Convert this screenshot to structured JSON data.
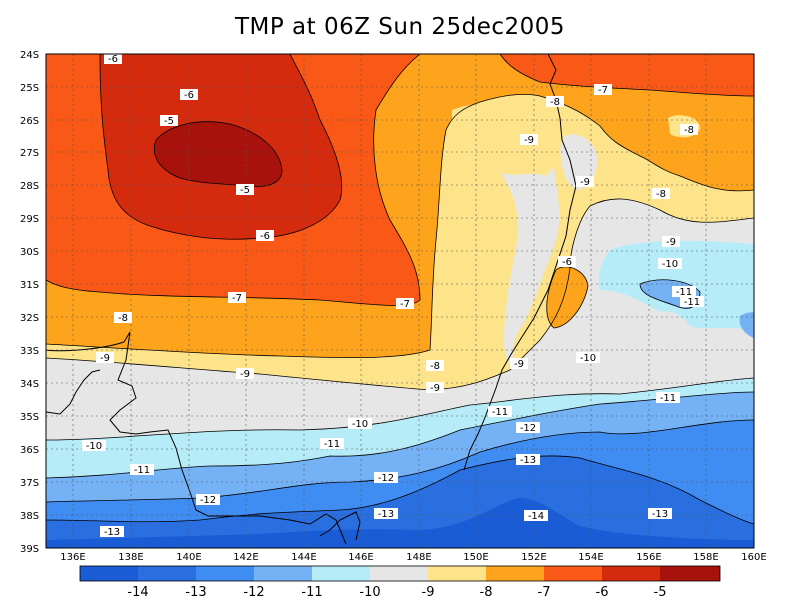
{
  "title": "TMP at 06Z Sun 25dec2005",
  "y_labels": [
    "24S",
    "25S",
    "26S",
    "27S",
    "28S",
    "29S",
    "30S",
    "31S",
    "32S",
    "33S",
    "34S",
    "35S",
    "36S",
    "37S",
    "38S",
    "39S"
  ],
  "x_labels": [
    "136E",
    "138E",
    "140E",
    "142E",
    "144E",
    "146E",
    "148E",
    "150E",
    "152E",
    "154E",
    "156E",
    "158E",
    "160E"
  ],
  "colors": {
    "lt_m14": "#1a5cd6",
    "m14_m13": "#2a6fe0",
    "m13_m12": "#3f8cf2",
    "m12_m11": "#75b2f5",
    "m11_m10": "#b5ecf7",
    "m10_m9": "#e6e6e6",
    "m9_m8": "#fde38a",
    "m8_m7": "#fea41c",
    "m7_m6": "#fa5816",
    "m6_m5": "#d42a0e",
    "gt_m5": "#a8120c"
  },
  "colorbar_labels": [
    "-14",
    "-13",
    "-12",
    "-11",
    "-10",
    "-9",
    "-8",
    "-7",
    "-6",
    "-5"
  ],
  "contour_labels": [
    {
      "text": "-6"
    },
    {
      "text": "-6"
    },
    {
      "text": "-5"
    },
    {
      "text": "-5"
    },
    {
      "text": "-6"
    },
    {
      "text": "-7"
    },
    {
      "text": "-7"
    },
    {
      "text": "-8"
    },
    {
      "text": "-9"
    },
    {
      "text": "-9"
    },
    {
      "text": "-8"
    },
    {
      "text": "-9"
    },
    {
      "text": "-10"
    },
    {
      "text": "-10"
    },
    {
      "text": "-11"
    },
    {
      "text": "-11"
    },
    {
      "text": "-12"
    },
    {
      "text": "-13"
    },
    {
      "text": "-7"
    },
    {
      "text": "-8"
    },
    {
      "text": "-9"
    },
    {
      "text": "-9"
    },
    {
      "text": "-8"
    },
    {
      "text": "-8"
    },
    {
      "text": "-9"
    },
    {
      "text": "-10"
    },
    {
      "text": "-11"
    },
    {
      "text": "-11"
    },
    {
      "text": "-6"
    },
    {
      "text": "-9"
    },
    {
      "text": "-10"
    },
    {
      "text": "-11"
    },
    {
      "text": "-11"
    },
    {
      "text": "-12"
    },
    {
      "text": "-12"
    },
    {
      "text": "-13"
    },
    {
      "text": "-13"
    },
    {
      "text": "-14"
    },
    {
      "text": "-13"
    }
  ]
}
